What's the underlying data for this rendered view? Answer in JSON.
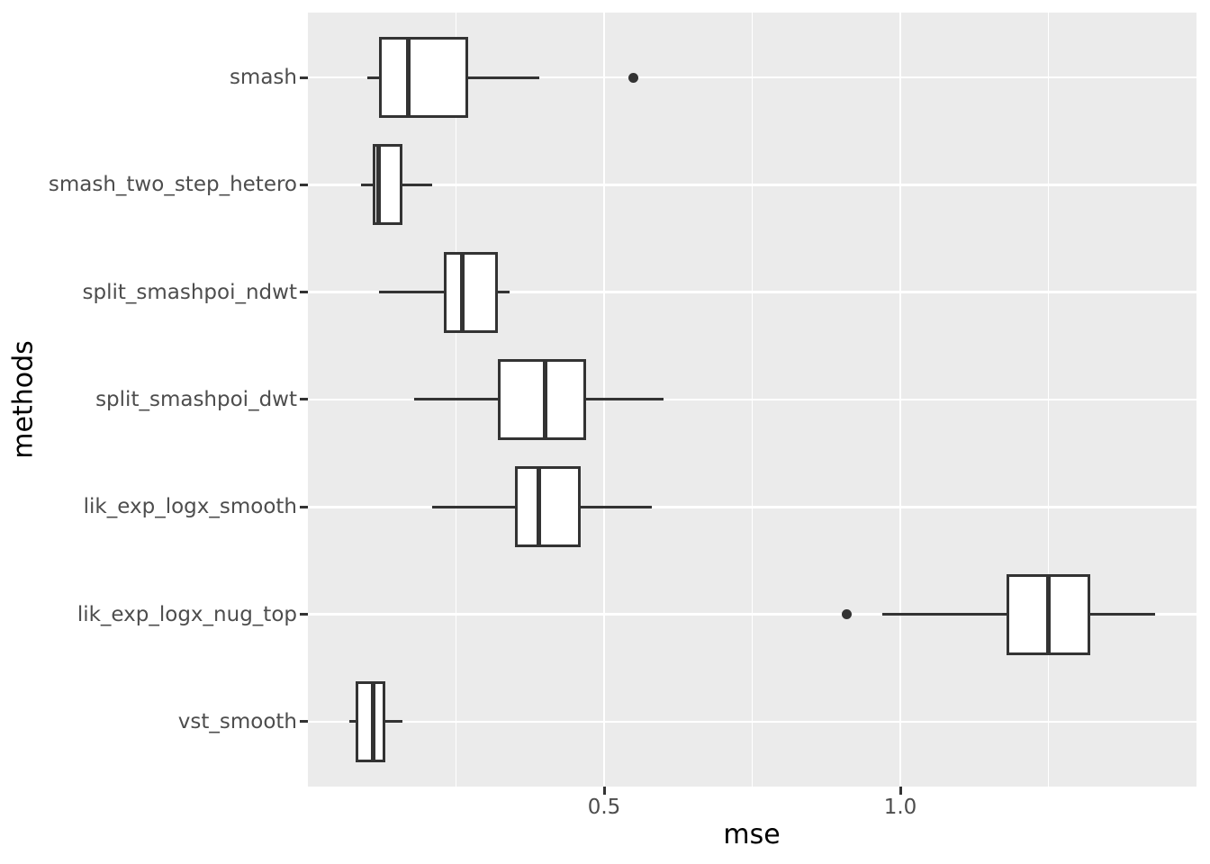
{
  "chart_data": {
    "type": "boxplot",
    "orientation": "horizontal",
    "title": "",
    "xlabel": "mse",
    "ylabel": "methods",
    "xlim": [
      0,
      1.5
    ],
    "x_ticks": [
      0.5,
      1.0
    ],
    "x_tick_labels": [
      "0.5",
      "1.0"
    ],
    "x_minor_ticks": [
      0.25,
      0.75,
      1.25
    ],
    "grid": "major and minor vertical, major horizontal per category, white on gray panel",
    "legend": "none",
    "categories_top_to_bottom": [
      "smash",
      "smash_two_step_hetero",
      "split_smashpoi_ndwt",
      "split_smashpoi_dwt",
      "lik_exp_logx_smooth",
      "lik_exp_logx_nug_top",
      "vst_smooth"
    ],
    "series": [
      {
        "method": "smash",
        "whisker_low": 0.1,
        "q1": 0.12,
        "median": 0.17,
        "q3": 0.27,
        "whisker_high": 0.39,
        "outliers": [
          0.55
        ]
      },
      {
        "method": "smash_two_step_hetero",
        "whisker_low": 0.09,
        "q1": 0.11,
        "median": 0.12,
        "q3": 0.16,
        "whisker_high": 0.21,
        "outliers": []
      },
      {
        "method": "split_smashpoi_ndwt",
        "whisker_low": 0.12,
        "q1": 0.23,
        "median": 0.26,
        "q3": 0.32,
        "whisker_high": 0.34,
        "outliers": []
      },
      {
        "method": "split_smashpoi_dwt",
        "whisker_low": 0.18,
        "q1": 0.32,
        "median": 0.4,
        "q3": 0.47,
        "whisker_high": 0.6,
        "outliers": []
      },
      {
        "method": "lik_exp_logx_smooth",
        "whisker_low": 0.21,
        "q1": 0.35,
        "median": 0.39,
        "q3": 0.46,
        "whisker_high": 0.58,
        "outliers": []
      },
      {
        "method": "lik_exp_logx_nug_top",
        "whisker_low": 0.97,
        "q1": 1.18,
        "median": 1.25,
        "q3": 1.32,
        "whisker_high": 1.43,
        "outliers": [
          0.91
        ]
      },
      {
        "method": "vst_smooth",
        "whisker_low": 0.07,
        "q1": 0.08,
        "median": 0.11,
        "q3": 0.13,
        "whisker_high": 0.16,
        "outliers": []
      }
    ]
  },
  "colors": {
    "panel_background": "#EBEBEB",
    "gridline": "#FFFFFF",
    "box_stroke": "#333333",
    "box_fill": "#FFFFFF",
    "outlier": "#333333",
    "axis_text": "#4D4D4D",
    "axis_title": "#000000",
    "figure_background": "#FFFFFF"
  }
}
